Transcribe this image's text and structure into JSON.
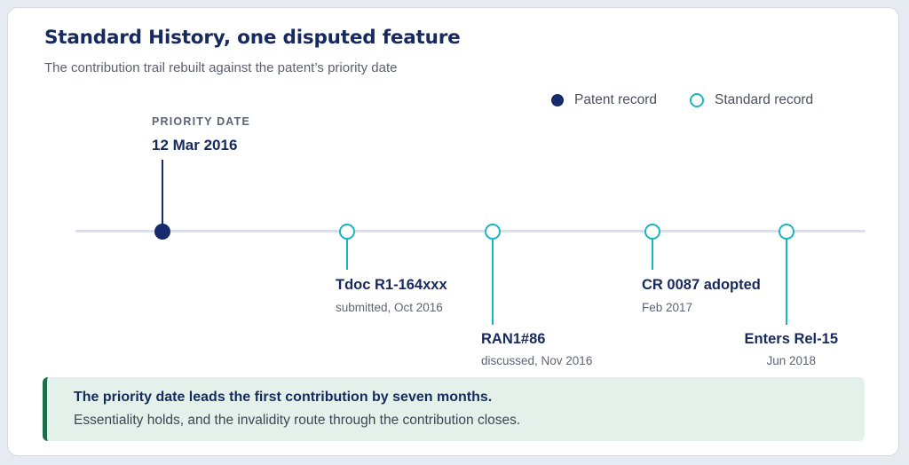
{
  "header": {
    "title": "Standard History, one disputed feature",
    "subtitle": "The contribution trail rebuilt against the patent’s priority date"
  },
  "legend": {
    "patent": "Patent record",
    "standard": "Standard record"
  },
  "priority": {
    "caption": "PRIORITY DATE",
    "date": "12 Mar 2016"
  },
  "events": [
    {
      "label": "Tdoc R1-164xxx",
      "date": "submitted, Oct 2016"
    },
    {
      "label": "RAN1#86",
      "date": "discussed, Nov 2016"
    },
    {
      "label": "CR 0087 adopted",
      "date": "Feb 2017"
    },
    {
      "label": "Enters Rel-15",
      "date": "Jun 2018"
    }
  ],
  "callout": {
    "title": "The priority date leads the first contribution by seven months.",
    "body": "Essentiality holds, and the invalidity route through the contribution closes."
  },
  "colors": {
    "patent": "#172a6b",
    "standard": "#1bb5c2",
    "axis": "#d8dff0",
    "callout_bg": "#e4f1ea",
    "callout_bar": "#1b6e47",
    "title": "#172a5e"
  }
}
